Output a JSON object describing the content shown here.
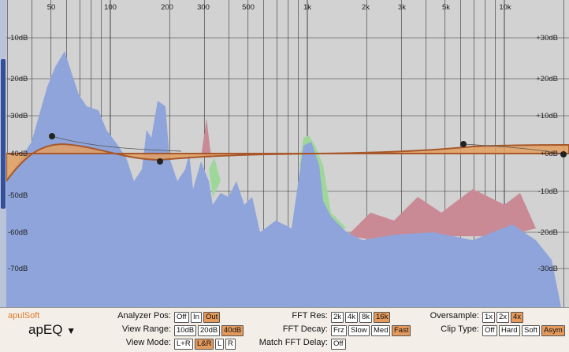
{
  "plot": {
    "frequency_labels": [
      "50",
      "100",
      "200",
      "300",
      "500",
      "1k",
      "2k",
      "3k",
      "5k",
      "10k"
    ],
    "left_db_labels": [
      "-10dB",
      "-20dB",
      "-30dB",
      "-40dB",
      "-50dB",
      "-60dB",
      "-70dB"
    ],
    "right_db_labels": [
      "+30dB",
      "+20dB",
      "+10dB",
      "+0dB",
      "-10dB",
      "-20dB",
      "-30dB"
    ]
  },
  "panel": {
    "brand": "apulSoft",
    "product": "apEQ",
    "controls": [
      {
        "label": "Analyzer Pos:",
        "options": [
          "Off",
          "In",
          "Out"
        ],
        "selected": 2
      },
      {
        "label": "View Range:",
        "options": [
          "10dB",
          "20dB",
          "40dB"
        ],
        "selected": 2
      },
      {
        "label": "View Mode:",
        "options": [
          "L+R",
          "L&R",
          "L",
          "R"
        ],
        "selected": 1
      },
      {
        "label": "FFT Res:",
        "options": [
          "2k",
          "4k",
          "8k",
          "16k"
        ],
        "selected": 3
      },
      {
        "label": "FFT Decay:",
        "options": [
          "Frz",
          "Slow",
          "Med",
          "Fast"
        ],
        "selected": 3
      },
      {
        "label": "Match FFT Delay:",
        "options": [
          "Off"
        ],
        "selected": -1
      },
      {
        "label": "Oversample:",
        "options": [
          "1x",
          "2x",
          "4x"
        ],
        "selected": 2
      },
      {
        "label": "Clip Type:",
        "options": [
          "Off",
          "Hard",
          "Soft",
          "Asym"
        ],
        "selected": 3
      }
    ]
  }
}
